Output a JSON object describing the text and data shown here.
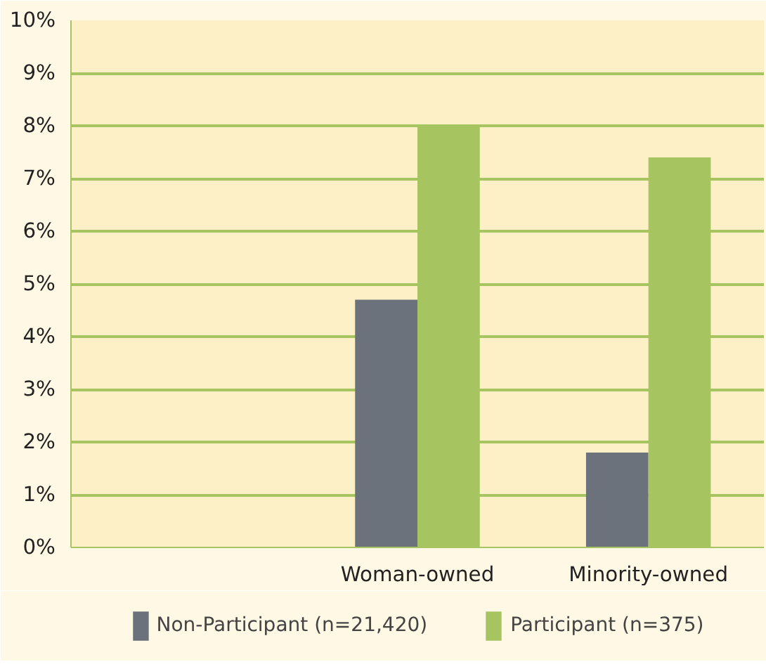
{
  "chart_data": {
    "type": "bar",
    "categories": [
      null,
      "Woman-owned",
      "Minority-owned"
    ],
    "series": [
      {
        "name": "Non-Participant (n=21,420)",
        "color": "#6b727c",
        "values": [
          null,
          4.7,
          1.8
        ]
      },
      {
        "name": "Participant (n=375)",
        "color": "#a6c561",
        "values": [
          null,
          8.0,
          7.4
        ]
      }
    ],
    "ylim": [
      0,
      10
    ],
    "yticks": [
      {
        "value": 0,
        "label": "0%"
      },
      {
        "value": 1,
        "label": "1%"
      },
      {
        "value": 2,
        "label": "2%"
      },
      {
        "value": 3,
        "label": "3%"
      },
      {
        "value": 4,
        "label": "4%"
      },
      {
        "value": 5,
        "label": "5%"
      },
      {
        "value": 6,
        "label": "6%"
      },
      {
        "value": 7,
        "label": "7%"
      },
      {
        "value": 8,
        "label": "8%"
      },
      {
        "value": 9,
        "label": "9%"
      },
      {
        "value": 10,
        "label": "10%"
      }
    ],
    "grid": "y",
    "legend": "bottom"
  }
}
